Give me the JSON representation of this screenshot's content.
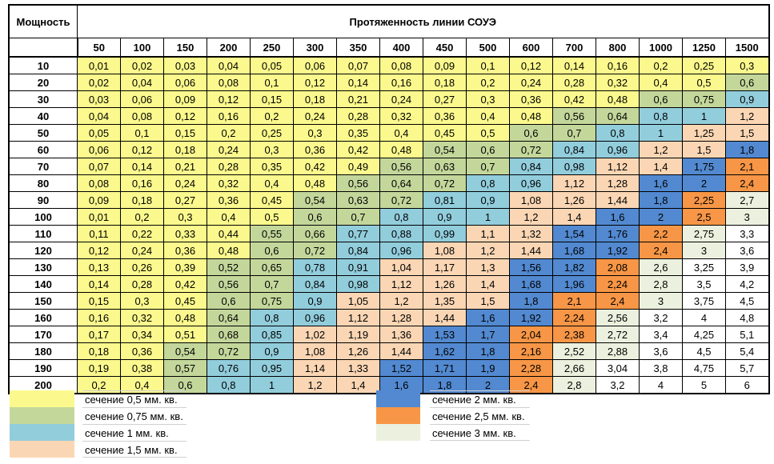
{
  "chart_data": {
    "type": "table",
    "row_header_label": "Мощность",
    "col_group_label": "Протяженность линии СОУЭ",
    "columns": [
      "50",
      "100",
      "150",
      "200",
      "250",
      "300",
      "350",
      "400",
      "450",
      "500",
      "600",
      "700",
      "800",
      "1000",
      "1250",
      "1500"
    ],
    "row_labels": [
      "10",
      "20",
      "30",
      "40",
      "50",
      "60",
      "70",
      "80",
      "90",
      "100",
      "110",
      "120",
      "130",
      "140",
      "150",
      "160",
      "170",
      "180",
      "190",
      "200"
    ],
    "cell_text": [
      [
        "0,01",
        "0,02",
        "0,03",
        "0,04",
        "0,05",
        "0,06",
        "0,07",
        "0,08",
        "0,09",
        "0,1",
        "0,12",
        "0,14",
        "0,16",
        "0,2",
        "0,25",
        "0,3"
      ],
      [
        "0,02",
        "0,04",
        "0,06",
        "0,08",
        "0,1",
        "0,12",
        "0,14",
        "0,16",
        "0,18",
        "0,2",
        "0,24",
        "0,28",
        "0,32",
        "0,4",
        "0,5",
        "0,6"
      ],
      [
        "0,03",
        "0,06",
        "0,09",
        "0,12",
        "0,15",
        "0,18",
        "0,21",
        "0,24",
        "0,27",
        "0,3",
        "0,36",
        "0,42",
        "0,48",
        "0,6",
        "0,75",
        "0,9"
      ],
      [
        "0,04",
        "0,08",
        "0,12",
        "0,16",
        "0,2",
        "0,24",
        "0,28",
        "0,32",
        "0,36",
        "0,4",
        "0,48",
        "0,56",
        "0,64",
        "0,8",
        "1",
        "1,2"
      ],
      [
        "0,05",
        "0,1",
        "0,15",
        "0,2",
        "0,25",
        "0,3",
        "0,35",
        "0,4",
        "0,45",
        "0,5",
        "0,6",
        "0,7",
        "0,8",
        "1",
        "1,25",
        "1,5"
      ],
      [
        "0,06",
        "0,12",
        "0,18",
        "0,24",
        "0,3",
        "0,36",
        "0,42",
        "0,48",
        "0,54",
        "0,6",
        "0,72",
        "0,84",
        "0,96",
        "1,2",
        "1,5",
        "1,8"
      ],
      [
        "0,07",
        "0,14",
        "0,21",
        "0,28",
        "0,35",
        "0,42",
        "0,49",
        "0,56",
        "0,63",
        "0,7",
        "0,84",
        "0,98",
        "1,12",
        "1,4",
        "1,75",
        "2,1"
      ],
      [
        "0,08",
        "0,16",
        "0,24",
        "0,32",
        "0,4",
        "0,48",
        "0,56",
        "0,64",
        "0,72",
        "0,8",
        "0,96",
        "1,12",
        "1,28",
        "1,6",
        "2",
        "2,4"
      ],
      [
        "0,09",
        "0,18",
        "0,27",
        "0,36",
        "0,45",
        "0,54",
        "0,63",
        "0,72",
        "0,81",
        "0,9",
        "1,08",
        "1,26",
        "1,44",
        "1,8",
        "2,25",
        "2,7"
      ],
      [
        "0,01",
        "0,2",
        "0,3",
        "0,4",
        "0,5",
        "0,6",
        "0,7",
        "0,8",
        "0,9",
        "1",
        "1,2",
        "1,4",
        "1,6",
        "2",
        "2,5",
        "3"
      ],
      [
        "0,11",
        "0,22",
        "0,33",
        "0,44",
        "0,55",
        "0,66",
        "0,77",
        "0,88",
        "0,99",
        "1,1",
        "1,32",
        "1,54",
        "1,76",
        "2,2",
        "2,75",
        "3,3"
      ],
      [
        "0,12",
        "0,24",
        "0,36",
        "0,48",
        "0,6",
        "0,72",
        "0,84",
        "0,96",
        "1,08",
        "1,2",
        "1,44",
        "1,68",
        "1,92",
        "2,4",
        "3",
        "3,6"
      ],
      [
        "0,13",
        "0,26",
        "0,39",
        "0,52",
        "0,65",
        "0,78",
        "0,91",
        "1,04",
        "1,17",
        "1,3",
        "1,56",
        "1,82",
        "2,08",
        "2,6",
        "3,25",
        "3,9"
      ],
      [
        "0,14",
        "0,28",
        "0,42",
        "0,56",
        "0,7",
        "0,84",
        "0,98",
        "1,12",
        "1,26",
        "1,4",
        "1,68",
        "1,96",
        "2,24",
        "2,8",
        "3,5",
        "4,2"
      ],
      [
        "0,15",
        "0,3",
        "0,45",
        "0,6",
        "0,75",
        "0,9",
        "1,05",
        "1,2",
        "1,35",
        "1,5",
        "1,8",
        "2,1",
        "2,4",
        "3",
        "3,75",
        "4,5"
      ],
      [
        "0,16",
        "0,32",
        "0,48",
        "0,64",
        "0,8",
        "0,96",
        "1,12",
        "1,28",
        "1,44",
        "1,6",
        "1,92",
        "2,24",
        "2,56",
        "3,2",
        "4",
        "4,8"
      ],
      [
        "0,17",
        "0,34",
        "0,51",
        "0,68",
        "0,85",
        "1,02",
        "1,19",
        "1,36",
        "1,53",
        "1,7",
        "2,04",
        "2,38",
        "2,72",
        "3,4",
        "4,25",
        "5,1"
      ],
      [
        "0,18",
        "0,36",
        "0,54",
        "0,72",
        "0,9",
        "1,08",
        "1,26",
        "1,44",
        "1,62",
        "1,8",
        "2,16",
        "2,52",
        "2,88",
        "3,6",
        "4,5",
        "5,4"
      ],
      [
        "0,19",
        "0,38",
        "0,57",
        "0,76",
        "0,95",
        "1,14",
        "1,33",
        "1,52",
        "1,71",
        "1,9",
        "2,28",
        "2,66",
        "3,04",
        "3,8",
        "4,75",
        "5,7"
      ],
      [
        "0,2",
        "0,4",
        "0,6",
        "0,8",
        "1",
        "1,2",
        "1,4",
        "1,6",
        "1,8",
        "2",
        "2,4",
        "2,8",
        "3,2",
        "4",
        "5",
        "6"
      ]
    ],
    "color_rules": [
      {
        "label": "сечение 0,5 мм. кв.",
        "color": "#FBF98D",
        "max": 0.51
      },
      {
        "label": "сечение 0,75 мм. кв.",
        "color": "#C4D79B",
        "max": 0.75
      },
      {
        "label": "сечение 1 мм. кв.",
        "color": "#92CDDC",
        "max": 1.0
      },
      {
        "label": "сечение 1,5 мм. кв.",
        "color": "#FBD6B4",
        "max": 1.5
      },
      {
        "label": "сечение 2 мм. кв.",
        "color": "#5289D0",
        "max": 2.0
      },
      {
        "label": "сечение 2,5 мм. кв.",
        "color": "#F79646",
        "max": 2.5
      },
      {
        "label": "сечение 3 мм. кв.",
        "color": "#EBF1DE",
        "max": 3.0
      }
    ],
    "default_color": "#FFFFFF"
  }
}
